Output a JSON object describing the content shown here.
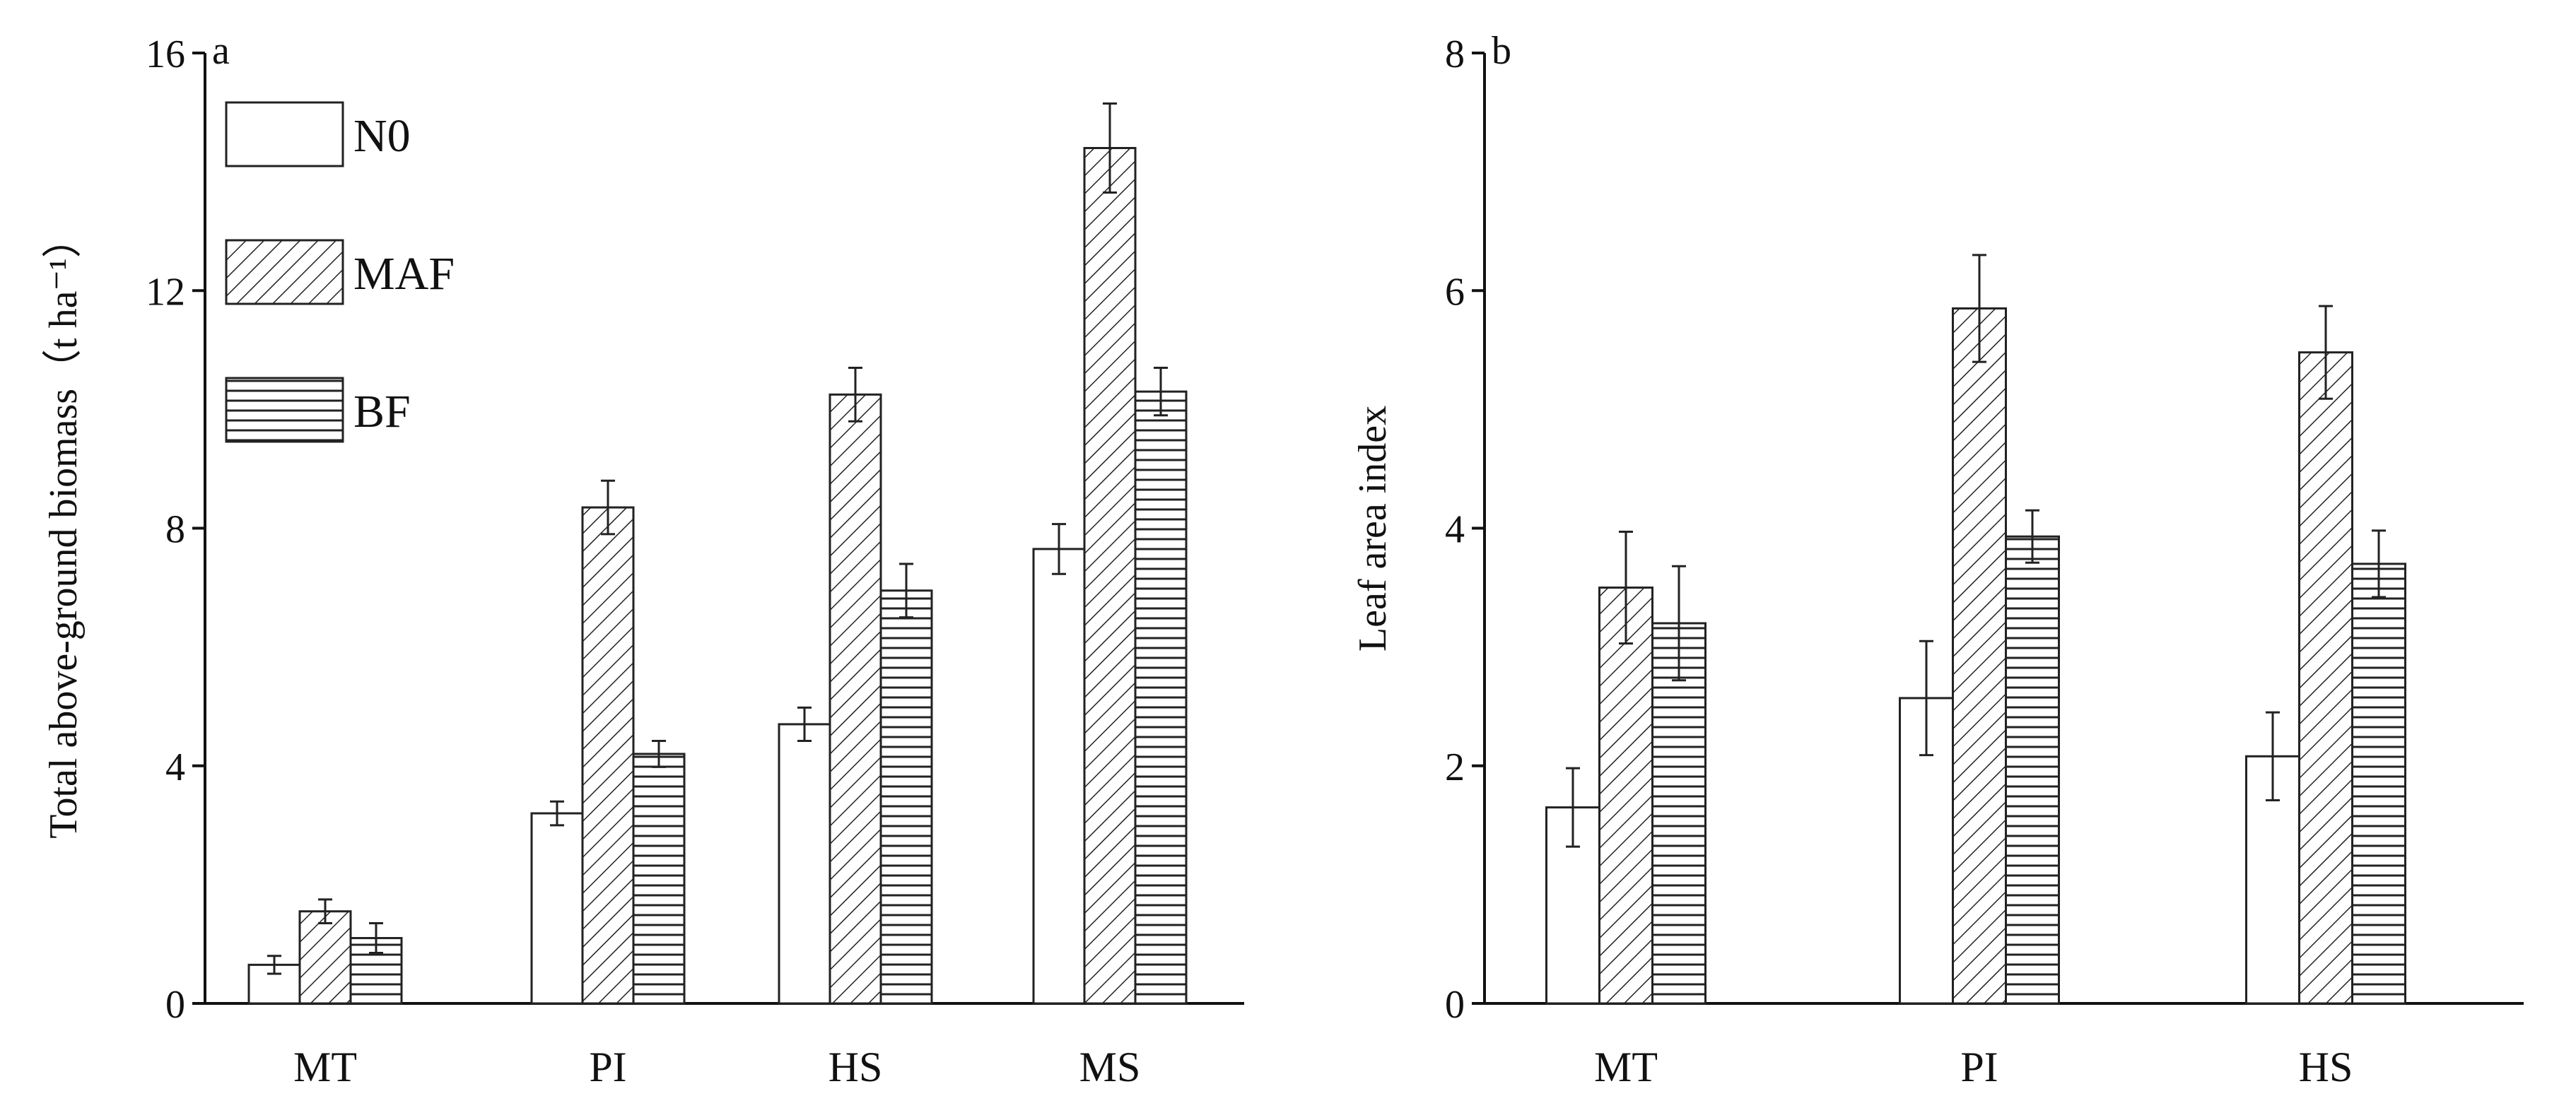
{
  "chart_data": [
    {
      "type": "bar",
      "panel_label": "a",
      "ylabel": "Total above-ground biomass（t ha⁻¹）",
      "categories": [
        "MT",
        "PI",
        "HS",
        "MS"
      ],
      "ylim": [
        0,
        16
      ],
      "yticks": [
        "0",
        "4",
        "8",
        "12",
        "16"
      ],
      "series": [
        {
          "name": "N0",
          "pattern": "none",
          "values": [
            0.65,
            3.2,
            4.7,
            7.65
          ],
          "errors": [
            0.15,
            0.2,
            0.28,
            0.42
          ]
        },
        {
          "name": "MAF",
          "pattern": "diagonal-hatch",
          "values": [
            1.55,
            8.35,
            10.25,
            14.4
          ],
          "errors": [
            0.2,
            0.45,
            0.45,
            0.75
          ]
        },
        {
          "name": "BF",
          "pattern": "horizontal-lines",
          "values": [
            1.1,
            4.2,
            6.95,
            10.3
          ],
          "errors": [
            0.25,
            0.22,
            0.45,
            0.4
          ]
        }
      ],
      "legend": {
        "placement": "top-left",
        "entries": [
          "N0",
          "MAF",
          "BF"
        ]
      }
    },
    {
      "type": "bar",
      "panel_label": "b",
      "ylabel": "Leaf area index",
      "categories": [
        "MT",
        "PI",
        "HS"
      ],
      "ylim": [
        0,
        8
      ],
      "yticks": [
        "0",
        "2",
        "4",
        "6",
        "8"
      ],
      "series": [
        {
          "name": "N0",
          "pattern": "none",
          "values": [
            1.65,
            2.57,
            2.08
          ],
          "errors": [
            0.33,
            0.48,
            0.37
          ]
        },
        {
          "name": "MAF",
          "pattern": "diagonal-hatch",
          "values": [
            3.5,
            5.85,
            5.48
          ],
          "errors": [
            0.47,
            0.45,
            0.39
          ]
        },
        {
          "name": "BF",
          "pattern": "horizontal-lines",
          "values": [
            3.2,
            3.93,
            3.7
          ],
          "errors": [
            0.48,
            0.22,
            0.28
          ]
        }
      ]
    }
  ]
}
